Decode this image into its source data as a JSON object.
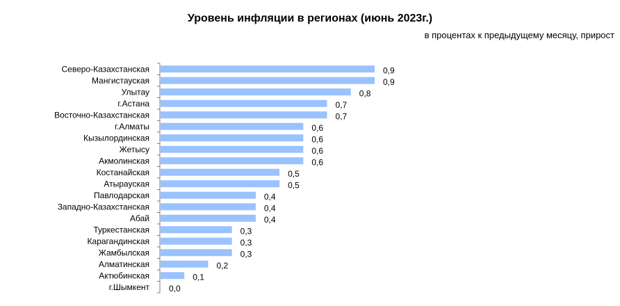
{
  "chart_data": {
    "type": "bar",
    "orientation": "horizontal",
    "title": "Уровень инфляции в регионах (июнь 2023г.)",
    "subtitle": "в процентах к предыдущему месяцу, прирост",
    "categories": [
      "Северо-Казахстанская",
      "Мангистауская",
      "Улытау",
      "г.Астана",
      "Восточно-Казахстанская",
      "г.Алматы",
      "Кызылординская",
      "Жетысу",
      "Акмолинская",
      "Костанайская",
      "Атырауская",
      "Павлодарская",
      "Западно-Казахстанская",
      "Абай",
      "Туркестанская",
      "Карагандинская",
      "Жамбылская",
      "Алматинская",
      "Актюбинская",
      "г.Шымкент"
    ],
    "values": [
      0.9,
      0.9,
      0.8,
      0.7,
      0.7,
      0.6,
      0.6,
      0.6,
      0.6,
      0.5,
      0.5,
      0.4,
      0.4,
      0.4,
      0.3,
      0.3,
      0.3,
      0.2,
      0.1,
      0.0
    ],
    "value_labels": [
      "0,9",
      "0,9",
      "0,8",
      "0,7",
      "0,7",
      "0,6",
      "0,6",
      "0,6",
      "0,6",
      "0,5",
      "0,5",
      "0,4",
      "0,4",
      "0,4",
      "0,3",
      "0,3",
      "0,3",
      "0,2",
      "0,1",
      "0,0"
    ],
    "xlim": [
      0,
      0.9
    ],
    "bar_color": "#99c2ff",
    "axis_color": "#7f7f7f",
    "grid": false,
    "legend": "none"
  }
}
